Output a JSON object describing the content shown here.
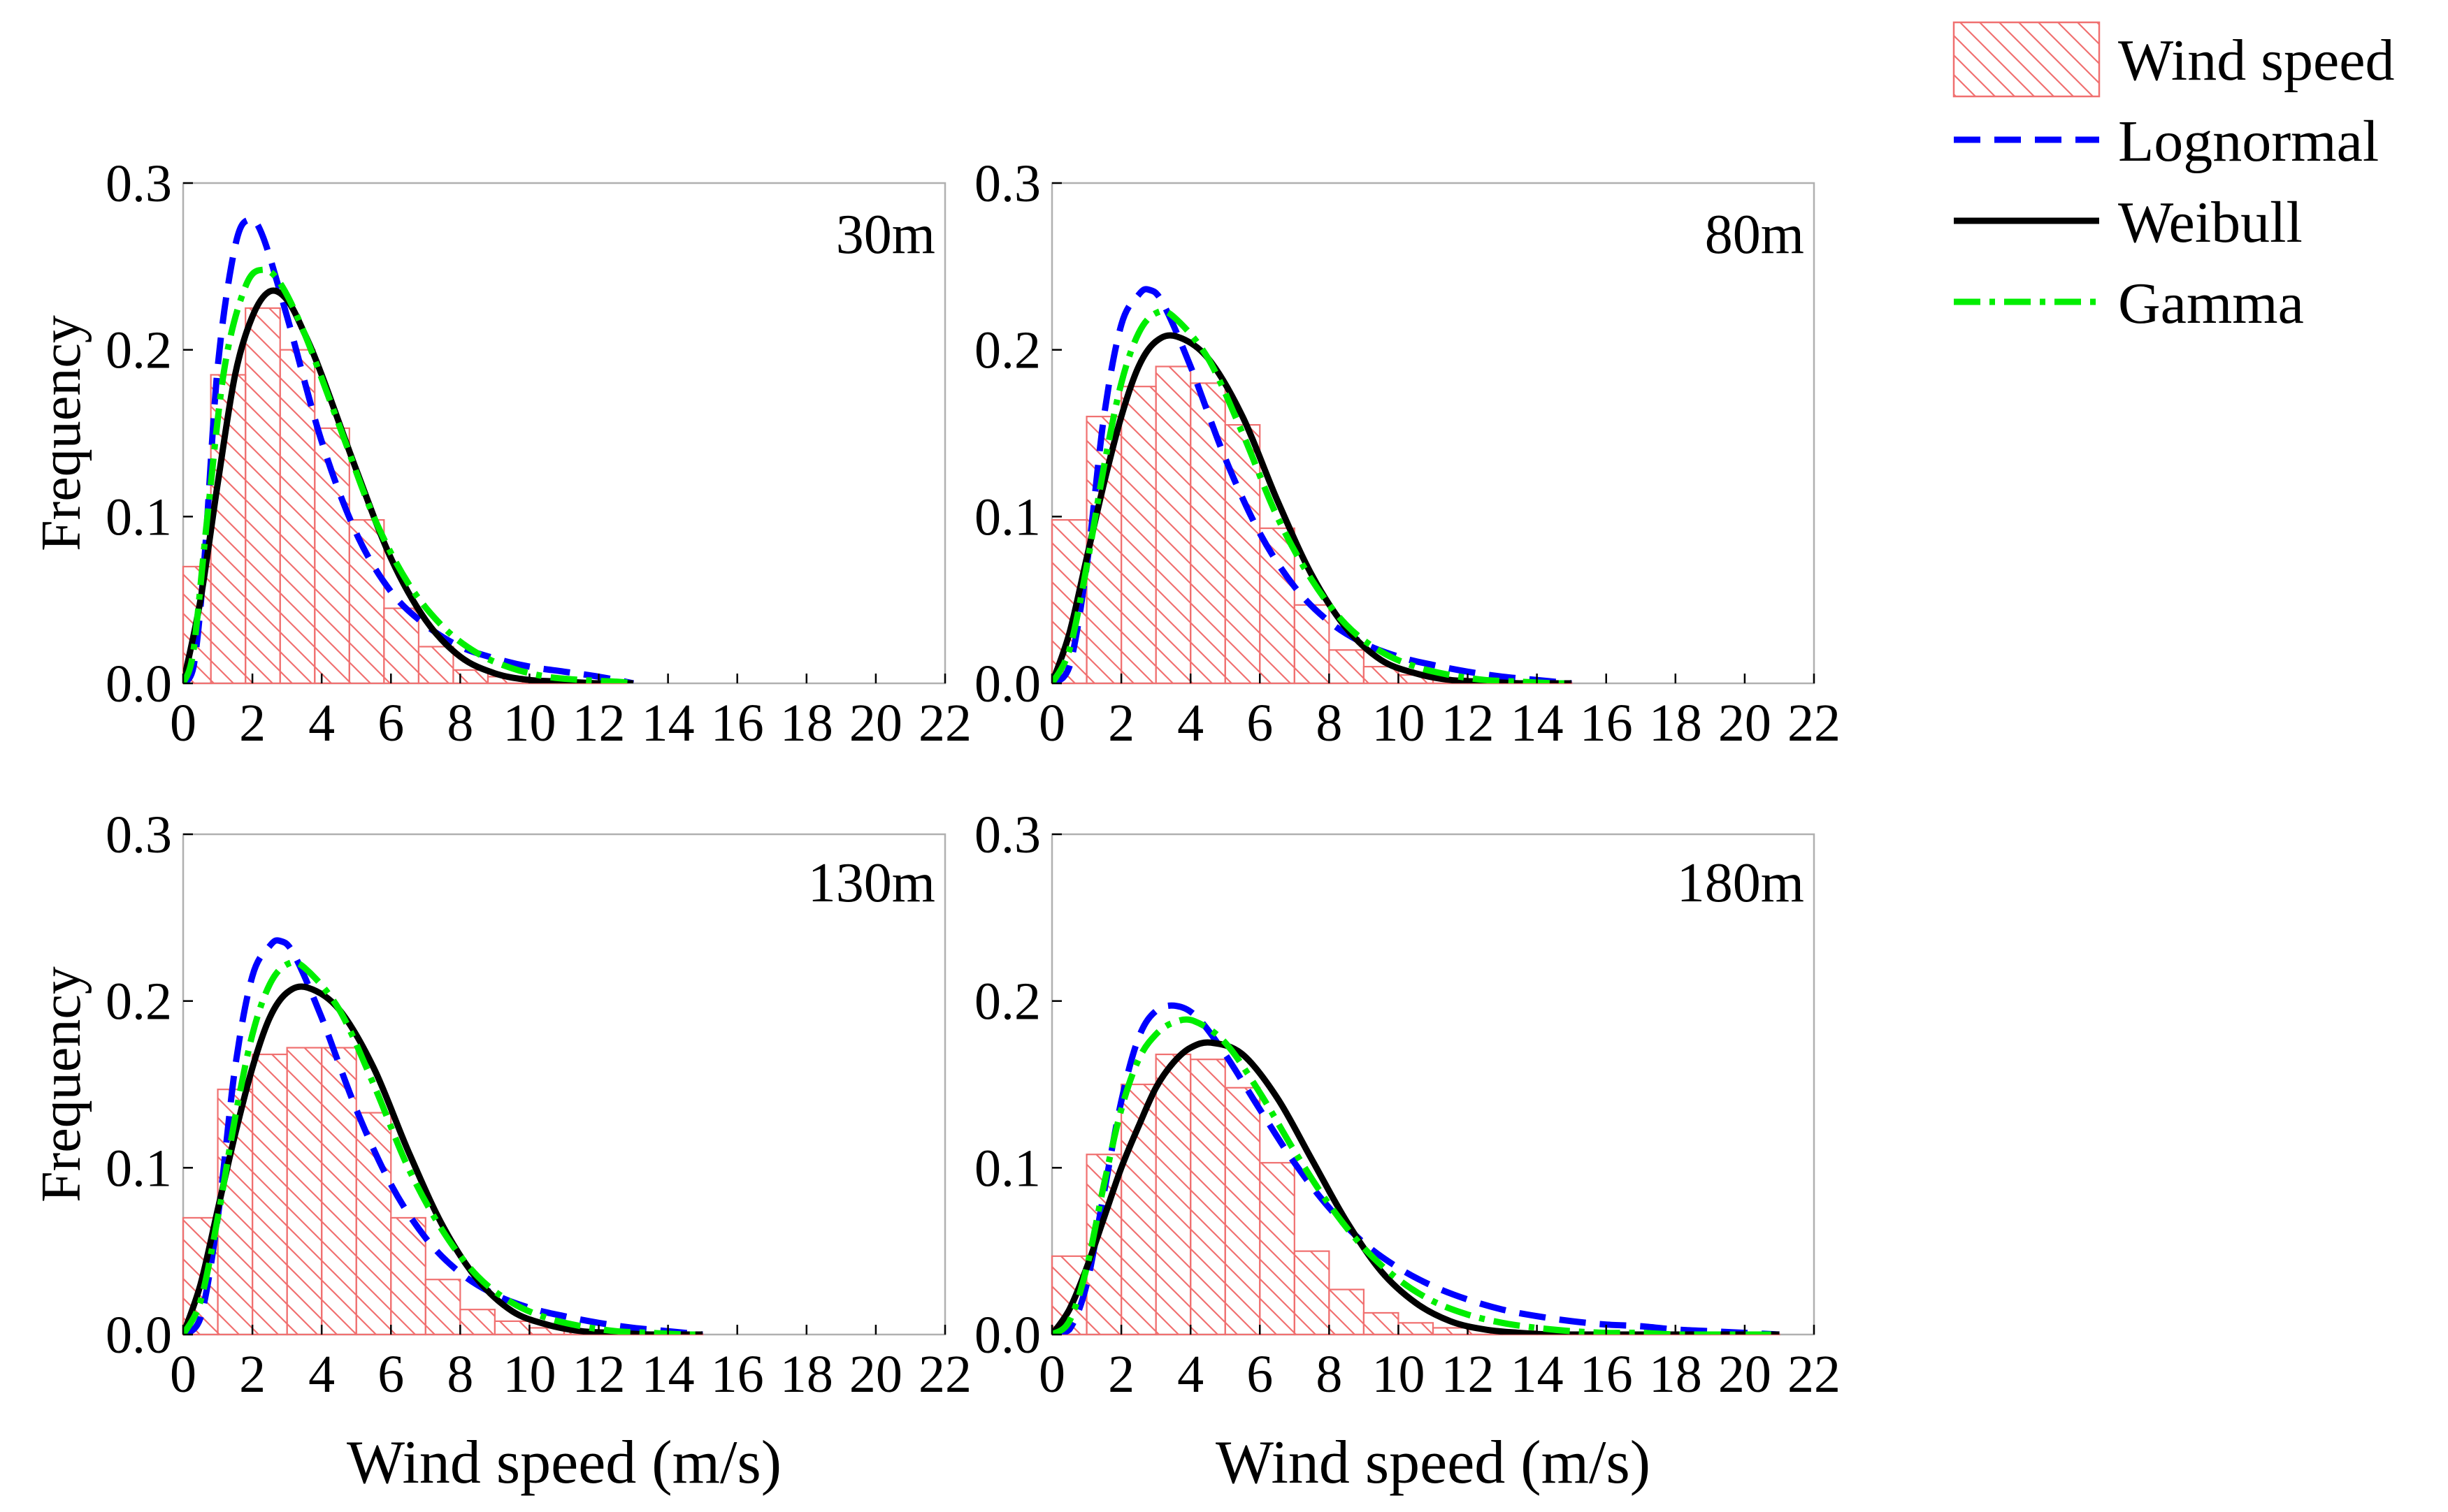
{
  "figure": {
    "legend": [
      {
        "label": "Wind speed",
        "kind": "bar"
      },
      {
        "label": "Lognormal",
        "kind": "line",
        "color": "#0000ff",
        "dash": "dash"
      },
      {
        "label": "Weibull",
        "kind": "line",
        "color": "#000000",
        "dash": "solid"
      },
      {
        "label": "Gamma",
        "kind": "line",
        "color": "#00ee00",
        "dash": "dashdot"
      }
    ],
    "colors": {
      "histogram_stroke": "#f07070",
      "lognormal": "#0000ff",
      "weibull": "#000000",
      "gamma": "#00ee00"
    }
  },
  "chart_data": [
    {
      "type": "bar",
      "panel_label": "30m",
      "xlabel": "",
      "ylabel": "Frequency",
      "xlim": [
        0,
        22
      ],
      "ylim": [
        0,
        0.3
      ],
      "xticks": [
        "0",
        "2",
        "4",
        "6",
        "8",
        "10",
        "12",
        "14",
        "16",
        "18",
        "20",
        "22"
      ],
      "yticks": [
        "0.0",
        "0.1",
        "0.2",
        "0.3"
      ],
      "bin_edges": [
        0,
        0.8,
        1.8,
        2.8,
        3.8,
        4.8,
        5.8,
        6.8,
        7.8,
        8.8,
        9.8,
        10.8,
        11.8,
        12.8
      ],
      "values": [
        0.07,
        0.185,
        0.225,
        0.2,
        0.153,
        0.098,
        0.045,
        0.022,
        0.008,
        0.004,
        0.002,
        0.001,
        0.0005
      ],
      "series": [
        {
          "name": "Lognormal",
          "x": [
            0,
            0.3,
            0.6,
            1.0,
            1.5,
            1.9,
            2.3,
            3.0,
            4.0,
            5.0,
            6.0,
            7.0,
            8.0,
            9.0,
            10.0,
            11.0,
            12.0,
            13.0
          ],
          "y": [
            0,
            0.01,
            0.07,
            0.19,
            0.262,
            0.278,
            0.268,
            0.22,
            0.145,
            0.09,
            0.055,
            0.035,
            0.022,
            0.015,
            0.01,
            0.007,
            0.004,
            0
          ]
        },
        {
          "name": "Weibull",
          "x": [
            0,
            0.5,
            1.0,
            1.5,
            2.0,
            2.5,
            3.0,
            3.5,
            4.0,
            5.0,
            6.0,
            7.0,
            8.0,
            9.0,
            10.0,
            11.0,
            12.0,
            13.0
          ],
          "y": [
            0,
            0.05,
            0.12,
            0.185,
            0.22,
            0.235,
            0.23,
            0.21,
            0.185,
            0.128,
            0.075,
            0.038,
            0.016,
            0.006,
            0.002,
            0.001,
            0,
            0
          ]
        },
        {
          "name": "Gamma",
          "x": [
            0,
            0.3,
            0.7,
            1.2,
            1.8,
            2.3,
            2.8,
            3.5,
            4.5,
            5.5,
            6.5,
            7.5,
            8.5,
            9.5,
            10.5,
            11.5,
            12.5,
            13.0
          ],
          "y": [
            0,
            0.02,
            0.1,
            0.19,
            0.238,
            0.248,
            0.24,
            0.21,
            0.155,
            0.1,
            0.06,
            0.034,
            0.018,
            0.009,
            0.004,
            0.002,
            0.001,
            0
          ]
        }
      ]
    },
    {
      "type": "bar",
      "panel_label": "80m",
      "xlabel": "",
      "ylabel": "",
      "xlim": [
        0,
        22
      ],
      "ylim": [
        0,
        0.3
      ],
      "xticks": [
        "0",
        "2",
        "4",
        "6",
        "8",
        "10",
        "12",
        "14",
        "16",
        "18",
        "20",
        "22"
      ],
      "yticks": [
        "0.0",
        "0.1",
        "0.2",
        "0.3"
      ],
      "bin_edges": [
        0,
        1,
        2,
        3,
        4,
        5,
        6,
        7,
        8,
        9,
        10,
        11,
        12,
        13,
        14,
        15
      ],
      "values": [
        0.098,
        0.16,
        0.178,
        0.19,
        0.18,
        0.155,
        0.093,
        0.047,
        0.02,
        0.01,
        0.005,
        0.003,
        0.002,
        0.001,
        0.0005
      ],
      "series": [
        {
          "name": "Lognormal",
          "x": [
            0,
            0.5,
            1.0,
            1.5,
            2.0,
            2.5,
            2.8,
            3.2,
            4.0,
            5.0,
            6.0,
            7.0,
            8.0,
            9.0,
            10.0,
            11.0,
            12.0,
            13.0,
            14.0,
            15.0
          ],
          "y": [
            0,
            0.01,
            0.07,
            0.16,
            0.215,
            0.233,
            0.236,
            0.228,
            0.19,
            0.135,
            0.09,
            0.058,
            0.037,
            0.024,
            0.016,
            0.011,
            0.007,
            0.004,
            0.002,
            0
          ]
        },
        {
          "name": "Weibull",
          "x": [
            0,
            0.5,
            1.0,
            1.5,
            2.0,
            2.5,
            3.0,
            3.6,
            4.5,
            5.5,
            6.5,
            7.5,
            8.5,
            9.5,
            10.5,
            11.5,
            12.5,
            13.5,
            14.5,
            15.0
          ],
          "y": [
            0,
            0.03,
            0.075,
            0.12,
            0.16,
            0.19,
            0.205,
            0.208,
            0.195,
            0.16,
            0.11,
            0.065,
            0.033,
            0.014,
            0.006,
            0.002,
            0.001,
            0,
            0,
            0
          ]
        },
        {
          "name": "Gamma",
          "x": [
            0,
            0.5,
            1.0,
            1.5,
            2.0,
            2.5,
            3.0,
            3.5,
            4.5,
            5.5,
            6.5,
            7.5,
            8.5,
            9.5,
            10.5,
            11.5,
            12.5,
            13.5,
            14.5,
            15.0
          ],
          "y": [
            0,
            0.02,
            0.07,
            0.13,
            0.18,
            0.21,
            0.222,
            0.22,
            0.195,
            0.15,
            0.1,
            0.062,
            0.035,
            0.019,
            0.01,
            0.005,
            0.002,
            0.001,
            0,
            0
          ]
        }
      ]
    },
    {
      "type": "bar",
      "panel_label": "130m",
      "xlabel": "Wind speed (m/s)",
      "ylabel": "Frequency",
      "xlim": [
        0,
        22
      ],
      "ylim": [
        0,
        0.3
      ],
      "xticks": [
        "0",
        "2",
        "4",
        "6",
        "8",
        "10",
        "12",
        "14",
        "16",
        "18",
        "20",
        "22"
      ],
      "yticks": [
        "0.0",
        "0.1",
        "0.2",
        "0.3"
      ],
      "bin_edges": [
        0,
        1,
        2,
        3,
        4,
        5,
        6,
        7,
        8,
        9,
        10,
        11,
        12,
        13,
        14,
        15
      ],
      "values": [
        0.07,
        0.147,
        0.168,
        0.172,
        0.172,
        0.133,
        0.07,
        0.033,
        0.015,
        0.008,
        0.004,
        0.002,
        0.001,
        0.0005,
        0.0003
      ],
      "series": [
        {
          "name": "Lognormal",
          "x": [
            0,
            0.5,
            1.0,
            1.5,
            2.0,
            2.5,
            2.8,
            3.2,
            4.0,
            5.0,
            6.0,
            7.0,
            8.0,
            9.0,
            10.0,
            11.0,
            12.0,
            13.0,
            14.0,
            15.0
          ],
          "y": [
            0,
            0.01,
            0.07,
            0.16,
            0.215,
            0.233,
            0.236,
            0.228,
            0.19,
            0.135,
            0.09,
            0.058,
            0.037,
            0.024,
            0.016,
            0.011,
            0.007,
            0.004,
            0.002,
            0
          ]
        },
        {
          "name": "Weibull",
          "x": [
            0,
            0.5,
            1.0,
            1.5,
            2.0,
            2.5,
            3.0,
            3.6,
            4.5,
            5.5,
            6.5,
            7.5,
            8.5,
            9.5,
            10.5,
            11.5,
            12.5,
            13.5,
            14.5,
            15.0
          ],
          "y": [
            0,
            0.03,
            0.075,
            0.12,
            0.16,
            0.19,
            0.205,
            0.208,
            0.195,
            0.16,
            0.11,
            0.065,
            0.033,
            0.014,
            0.006,
            0.002,
            0.001,
            0,
            0,
            0
          ]
        },
        {
          "name": "Gamma",
          "x": [
            0,
            0.5,
            1.0,
            1.5,
            2.0,
            2.5,
            3.0,
            3.5,
            4.5,
            5.5,
            6.5,
            7.5,
            8.5,
            9.5,
            10.5,
            11.5,
            12.5,
            13.5,
            14.5,
            15.0
          ],
          "y": [
            0,
            0.02,
            0.07,
            0.13,
            0.18,
            0.21,
            0.222,
            0.22,
            0.195,
            0.15,
            0.1,
            0.062,
            0.035,
            0.019,
            0.01,
            0.005,
            0.002,
            0.001,
            0,
            0
          ]
        }
      ]
    },
    {
      "type": "bar",
      "panel_label": "180m",
      "xlabel": "Wind speed (m/s)",
      "ylabel": "",
      "xlim": [
        0,
        22
      ],
      "ylim": [
        0,
        0.3
      ],
      "xticks": [
        "0",
        "2",
        "4",
        "6",
        "8",
        "10",
        "12",
        "14",
        "16",
        "18",
        "20",
        "22"
      ],
      "yticks": [
        "0.0",
        "0.1",
        "0.2",
        "0.3"
      ],
      "bin_edges": [
        0,
        1,
        2,
        3,
        4,
        5,
        6,
        7,
        8,
        9,
        10,
        11,
        12,
        13,
        14,
        15,
        16,
        17,
        18,
        19,
        20,
        21
      ],
      "values": [
        0.047,
        0.108,
        0.15,
        0.168,
        0.165,
        0.148,
        0.103,
        0.05,
        0.027,
        0.013,
        0.007,
        0.004,
        0.003,
        0.002,
        0.001,
        0.001,
        0.0005,
        0.0005,
        0.0003,
        0.0003,
        0.0002
      ],
      "series": [
        {
          "name": "Lognormal",
          "x": [
            0,
            0.5,
            1.0,
            1.5,
            2.0,
            2.5,
            3.0,
            3.6,
            4.2,
            5.0,
            6.0,
            7.0,
            8.0,
            9.0,
            10.0,
            11.0,
            12.0,
            13.0,
            14.0,
            15.0,
            16.0,
            17.0,
            18.0,
            19.0,
            20.0,
            21.0
          ],
          "y": [
            0,
            0.003,
            0.03,
            0.085,
            0.14,
            0.178,
            0.194,
            0.197,
            0.19,
            0.168,
            0.135,
            0.103,
            0.076,
            0.055,
            0.04,
            0.029,
            0.021,
            0.015,
            0.011,
            0.008,
            0.006,
            0.005,
            0.003,
            0.002,
            0.001,
            0
          ]
        },
        {
          "name": "Weibull",
          "x": [
            0,
            0.5,
            1.0,
            1.5,
            2.0,
            2.5,
            3.0,
            3.5,
            4.0,
            4.6,
            5.5,
            6.5,
            7.5,
            8.5,
            9.5,
            10.5,
            11.5,
            12.5,
            13.5,
            14.5,
            16.0,
            18.0,
            21.0
          ],
          "y": [
            0,
            0.015,
            0.04,
            0.07,
            0.1,
            0.125,
            0.148,
            0.163,
            0.172,
            0.175,
            0.168,
            0.142,
            0.105,
            0.068,
            0.038,
            0.019,
            0.008,
            0.003,
            0.001,
            0,
            0,
            0,
            0
          ]
        },
        {
          "name": "Gamma",
          "x": [
            0,
            0.5,
            1.0,
            1.5,
            2.0,
            2.5,
            3.0,
            3.5,
            4.1,
            5.0,
            6.0,
            7.0,
            8.0,
            9.0,
            10.0,
            11.0,
            12.0,
            13.0,
            14.0,
            15.0,
            16.0,
            17.0,
            18.0,
            19.0,
            20.0,
            21.0
          ],
          "y": [
            0,
            0.008,
            0.04,
            0.09,
            0.135,
            0.165,
            0.18,
            0.187,
            0.188,
            0.175,
            0.145,
            0.11,
            0.078,
            0.052,
            0.033,
            0.02,
            0.012,
            0.007,
            0.004,
            0.002,
            0.001,
            0.001,
            0,
            0,
            0,
            0
          ]
        }
      ]
    }
  ]
}
